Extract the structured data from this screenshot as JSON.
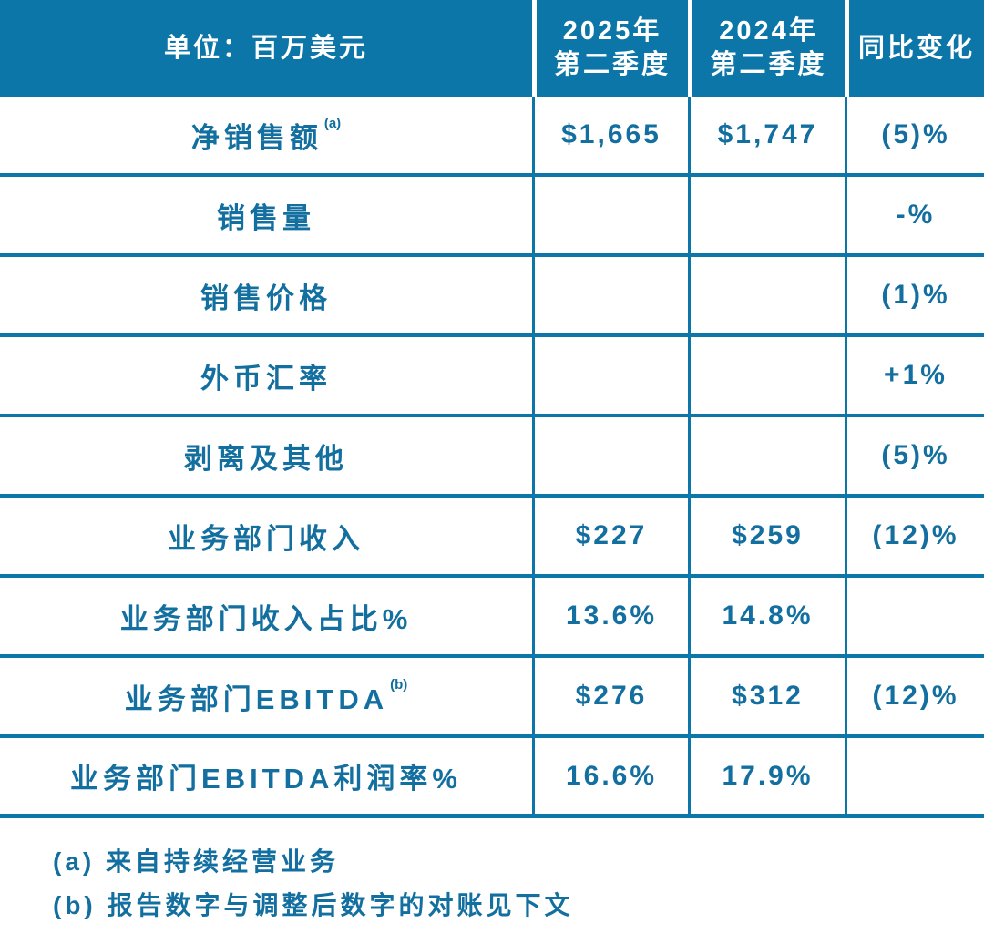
{
  "table": {
    "unit_label": "单位：百万美元",
    "col_2025": {
      "line1": "2025年",
      "line2": "第二季度"
    },
    "col_2024": {
      "line1": "2024年",
      "line2": "第二季度"
    },
    "col_yoy_label": "同比变化",
    "rows": [
      {
        "label": "净销售额",
        "sup": "(a)",
        "q2_2025": "$1,665",
        "q2_2024": "$1,747",
        "yoy": "(5)%"
      },
      {
        "label": "销售量",
        "q2_2025": "",
        "q2_2024": "",
        "yoy": "-%"
      },
      {
        "label": "销售价格",
        "q2_2025": "",
        "q2_2024": "",
        "yoy": "(1)%"
      },
      {
        "label": "外币汇率",
        "q2_2025": "",
        "q2_2024": "",
        "yoy": "+1%"
      },
      {
        "label": "剥离及其他",
        "q2_2025": "",
        "q2_2024": "",
        "yoy": "(5)%"
      },
      {
        "label": "业务部门收入",
        "q2_2025": "$227",
        "q2_2024": "$259",
        "yoy": "(12)%"
      },
      {
        "label": "业务部门收入占比%",
        "q2_2025": "13.6%",
        "q2_2024": "14.8%",
        "yoy": ""
      },
      {
        "label": "业务部门EBITDA",
        "sup": "(b)",
        "q2_2025": "$276",
        "q2_2024": "$312",
        "yoy": "(12)%"
      },
      {
        "label": "业务部门EBITDA利润率%",
        "q2_2025": "16.6%",
        "q2_2024": "17.9%",
        "yoy": ""
      }
    ]
  },
  "footnotes": [
    "(a) 来自持续经营业务",
    "(b) 报告数字与调整后数字的对账见下文"
  ],
  "colors": {
    "header_bg": "#0d76a8",
    "grid_line": "#0d76a8",
    "body_text": "#136f9f",
    "header_text": "#ffffff",
    "background": "#ffffff"
  }
}
